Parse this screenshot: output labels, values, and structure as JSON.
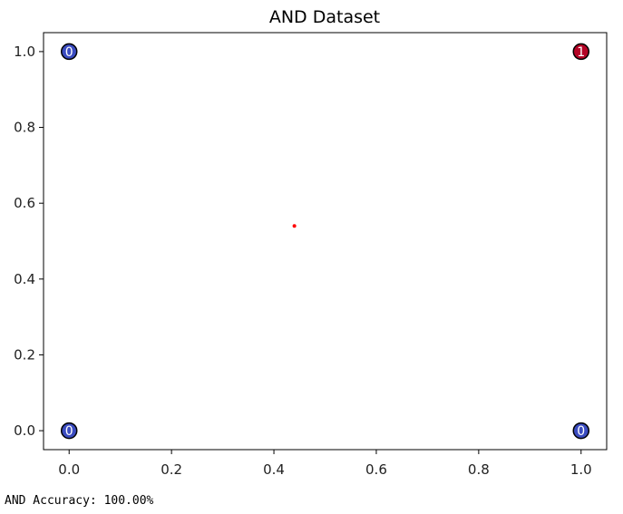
{
  "chart_data": {
    "type": "scatter",
    "title": "AND Dataset",
    "xlabel": "",
    "ylabel": "",
    "xlim": [
      -0.05,
      1.05
    ],
    "ylim": [
      -0.05,
      1.05
    ],
    "xticks": [
      0.0,
      0.2,
      0.4,
      0.6,
      0.8,
      1.0
    ],
    "yticks": [
      0.0,
      0.2,
      0.4,
      0.6,
      0.8,
      1.0
    ],
    "xtick_labels": [
      "0.0",
      "0.2",
      "0.4",
      "0.6",
      "0.8",
      "1.0"
    ],
    "ytick_labels": [
      "0.0",
      "0.2",
      "0.4",
      "0.6",
      "0.8",
      "1.0"
    ],
    "grid": false,
    "points": [
      {
        "x": 0,
        "y": 0,
        "label": "0",
        "color": "#3b4cc0"
      },
      {
        "x": 0,
        "y": 1,
        "label": "0",
        "color": "#3b4cc0"
      },
      {
        "x": 1,
        "y": 0,
        "label": "0",
        "color": "#3b4cc0"
      },
      {
        "x": 1,
        "y": 1,
        "label": "1",
        "color": "#b40426"
      }
    ],
    "extra_points": [
      {
        "x": 0.44,
        "y": 0.54,
        "color": "#ff0000"
      }
    ]
  },
  "output": {
    "accuracy_text": "AND Accuracy: 100.00%"
  }
}
